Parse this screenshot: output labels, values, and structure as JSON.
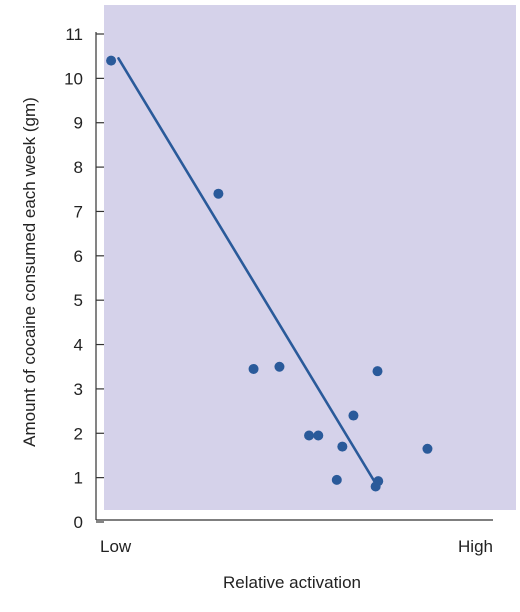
{
  "chart_data": {
    "type": "scatter",
    "xlabel": "Relative activation",
    "ylabel": "Amount of cocaine consumed each week (gm)",
    "x_tick_labels": {
      "low": "Low",
      "high": "High"
    },
    "xlim": [
      0,
      1
    ],
    "ylim": [
      0,
      11
    ],
    "y_ticks": [
      0,
      1,
      2,
      3,
      4,
      5,
      6,
      7,
      8,
      9,
      10,
      11
    ],
    "grid": false,
    "colors": {
      "plot_background": "#d5d2ea",
      "point": "#2a5a9a",
      "trend_line": "#2a5a9a",
      "axis": "#333333"
    },
    "points": [
      {
        "x": 0.03,
        "y": 10.4
      },
      {
        "x": 0.32,
        "y": 7.4
      },
      {
        "x": 0.415,
        "y": 3.45
      },
      {
        "x": 0.485,
        "y": 3.5
      },
      {
        "x": 0.565,
        "y": 1.95
      },
      {
        "x": 0.59,
        "y": 1.95
      },
      {
        "x": 0.64,
        "y": 0.95
      },
      {
        "x": 0.655,
        "y": 1.7
      },
      {
        "x": 0.685,
        "y": 2.4
      },
      {
        "x": 0.75,
        "y": 3.4
      },
      {
        "x": 0.745,
        "y": 0.8
      },
      {
        "x": 0.752,
        "y": 0.92
      },
      {
        "x": 0.885,
        "y": 1.65
      }
    ],
    "trend_line": {
      "x1": 0.05,
      "y1": 10.45,
      "x2": 0.75,
      "y2": 0.8
    }
  }
}
